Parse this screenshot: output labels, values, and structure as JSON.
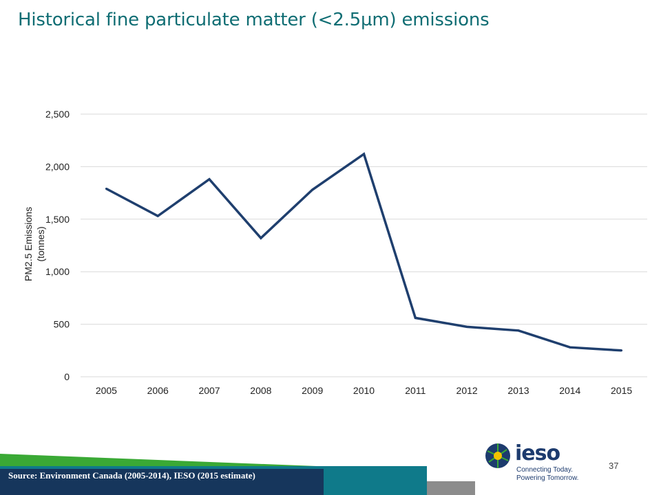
{
  "slide": {
    "title": "Historical fine particulate matter (<2.5µm) emissions",
    "source": "Source: Environment Canada (2005-2014), IESO (2015 estimate)",
    "page_number": "37",
    "logo": {
      "word": "ieso",
      "tagline_1": "Connecting Today.",
      "tagline_2": "Powering Tomorrow."
    }
  },
  "colors": {
    "title": "#0f6d73",
    "line": "#1f3f6e",
    "grid": "#d9d9d9",
    "green": "#3aa935",
    "teal": "#0f7a8a",
    "navy": "#16365c"
  },
  "chart_data": {
    "type": "line",
    "ylabel_lines": [
      "PM2.5 Emissions",
      "(tonnes)"
    ],
    "xlabel": "",
    "categories": [
      "2005",
      "2006",
      "2007",
      "2008",
      "2009",
      "2010",
      "2011",
      "2012",
      "2013",
      "2014",
      "2015"
    ],
    "series": [
      {
        "values": [
          1790,
          1530,
          1880,
          1320,
          1780,
          2120,
          560,
          475,
          440,
          280,
          250
        ]
      }
    ],
    "ylim": [
      0,
      2500
    ],
    "yticks": [
      0,
      500,
      1000,
      1500,
      2000,
      2500
    ],
    "ytick_labels": [
      "0",
      "500",
      "1,000",
      "1,500",
      "2,000",
      "2,500"
    ],
    "grid": true,
    "legend": "none"
  }
}
